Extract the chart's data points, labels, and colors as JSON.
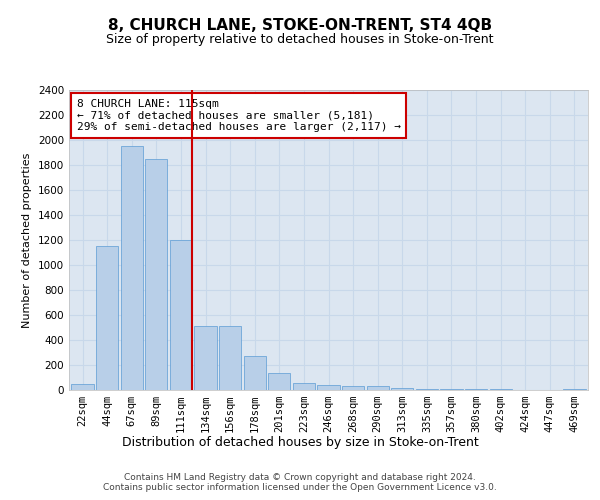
{
  "title": "8, CHURCH LANE, STOKE-ON-TRENT, ST4 4QB",
  "subtitle": "Size of property relative to detached houses in Stoke-on-Trent",
  "xlabel": "Distribution of detached houses by size in Stoke-on-Trent",
  "ylabel": "Number of detached properties",
  "categories": [
    "22sqm",
    "44sqm",
    "67sqm",
    "89sqm",
    "111sqm",
    "134sqm",
    "156sqm",
    "178sqm",
    "201sqm",
    "223sqm",
    "246sqm",
    "268sqm",
    "290sqm",
    "313sqm",
    "335sqm",
    "357sqm",
    "380sqm",
    "402sqm",
    "424sqm",
    "447sqm",
    "469sqm"
  ],
  "values": [
    50,
    1150,
    1950,
    1850,
    1200,
    510,
    510,
    270,
    140,
    60,
    40,
    35,
    30,
    15,
    10,
    8,
    5,
    5,
    3,
    2,
    5
  ],
  "bar_color": "#b8cfe8",
  "bar_edge_color": "#5b9bd5",
  "vline_color": "#cc0000",
  "annotation_text": "8 CHURCH LANE: 115sqm\n← 71% of detached houses are smaller (5,181)\n29% of semi-detached houses are larger (2,117) →",
  "annotation_box_color": "#ffffff",
  "annotation_box_edge_color": "#cc0000",
  "ylim": [
    0,
    2400
  ],
  "yticks": [
    0,
    200,
    400,
    600,
    800,
    1000,
    1200,
    1400,
    1600,
    1800,
    2000,
    2200,
    2400
  ],
  "grid_color": "#c8d8ea",
  "background_color": "#dce6f1",
  "footer_text": "Contains HM Land Registry data © Crown copyright and database right 2024.\nContains public sector information licensed under the Open Government Licence v3.0.",
  "title_fontsize": 11,
  "subtitle_fontsize": 9,
  "xlabel_fontsize": 9,
  "ylabel_fontsize": 8,
  "tick_fontsize": 7.5,
  "annotation_fontsize": 8,
  "footer_fontsize": 6.5
}
